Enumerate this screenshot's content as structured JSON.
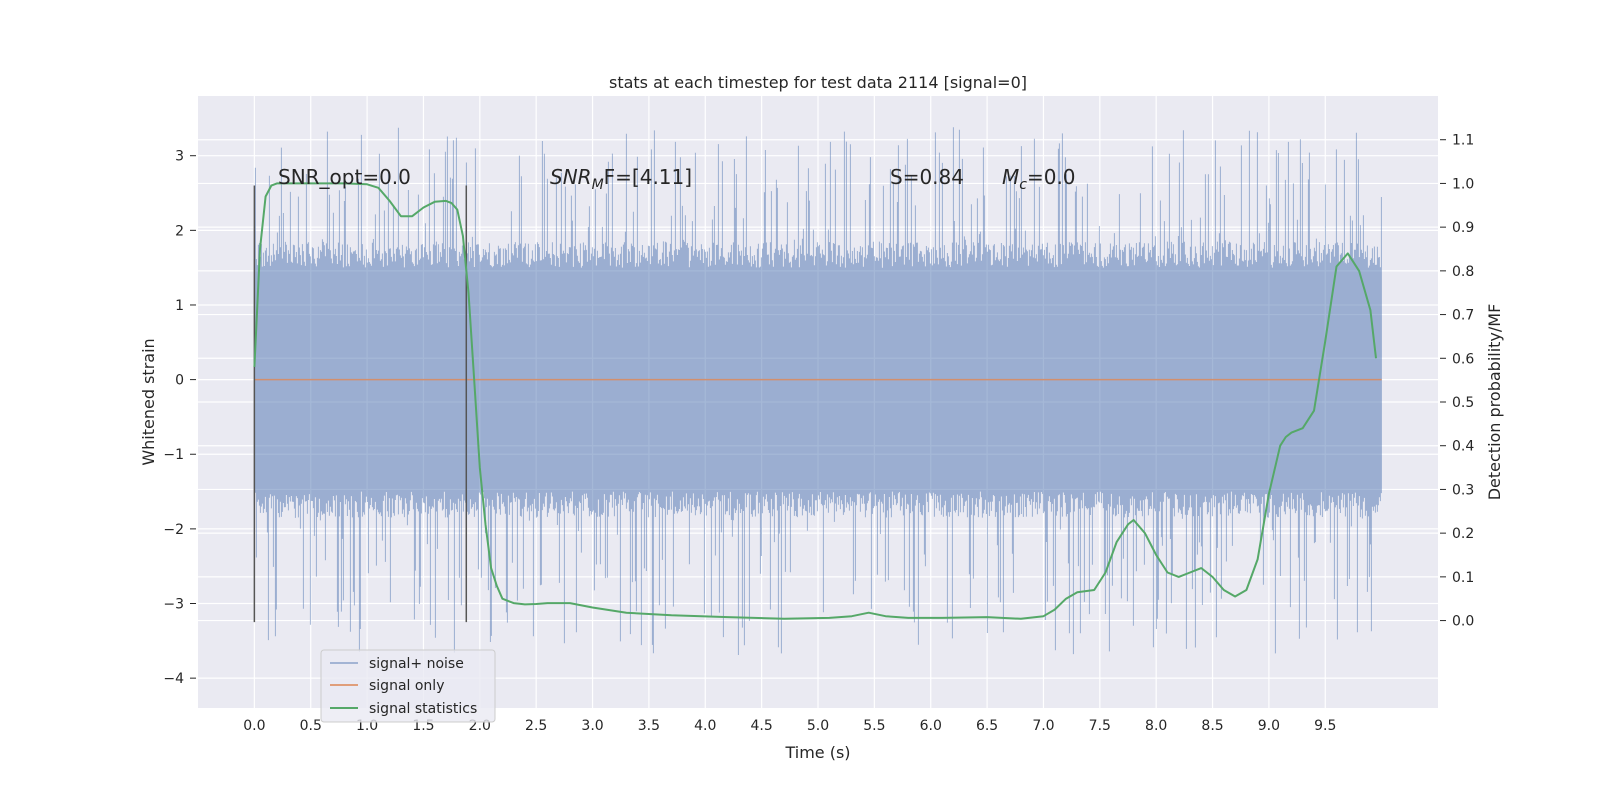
{
  "chart_data": {
    "type": "line",
    "title": "stats at each timestep for test data 2114 [signal=0]",
    "xlabel": "Time (s)",
    "ylabel": "Whitened strain",
    "y2label": "Detection probability/MF",
    "xlim": [
      -0.5,
      10.5
    ],
    "ylim": [
      -4.4,
      3.8
    ],
    "y2lim": [
      -0.2,
      1.2
    ],
    "x_ticks": [
      "0.0",
      "0.5",
      "1.0",
      "1.5",
      "2.0",
      "2.5",
      "3.0",
      "3.5",
      "4.0",
      "4.5",
      "5.0",
      "5.5",
      "6.0",
      "6.5",
      "7.0",
      "7.5",
      "8.0",
      "8.5",
      "9.0",
      "9.5"
    ],
    "y_ticks": [
      "3",
      "2",
      "1",
      "0",
      "−1",
      "−2",
      "−3",
      "−4"
    ],
    "y2_ticks": [
      "1.1",
      "1.0",
      "0.9",
      "0.8",
      "0.7",
      "0.6",
      "0.5",
      "0.4",
      "0.3",
      "0.2",
      "0.1",
      "0.0"
    ],
    "grid": true,
    "legend_position": "lower-left",
    "colors": {
      "noise": "#4c72b0",
      "signal": "#dd8452",
      "stat": "#55a868",
      "marker": "#555555",
      "background": "#eaeaf2"
    },
    "annotations": {
      "snr_opt": "SNR_opt=0.0",
      "snr_mf_main": "SNR",
      "snr_mf_sub": "M",
      "snr_mf_rest": "F=[4.11]",
      "s_stat": "S=0.84",
      "mc_main": "M",
      "mc_sub": "c",
      "mc_rest": "=0.0"
    },
    "vertical_markers": [
      0.0,
      1.88
    ],
    "series": [
      {
        "name": "signal+ noise",
        "kind": "noise_band",
        "x_range": [
          0.0,
          10.0
        ],
        "envelope_typical": [
          -1.5,
          1.5
        ],
        "envelope_peak": [
          -3.7,
          3.4
        ]
      },
      {
        "name": "signal only",
        "x": [
          0.0,
          10.0
        ],
        "values": [
          0.0,
          0.0
        ]
      },
      {
        "name": "signal statistics",
        "axis": "right",
        "x": [
          0.0,
          0.05,
          0.1,
          0.15,
          0.2,
          0.3,
          0.5,
          0.8,
          1.0,
          1.1,
          1.2,
          1.3,
          1.4,
          1.5,
          1.6,
          1.7,
          1.75,
          1.8,
          1.85,
          1.9,
          1.95,
          2.0,
          2.05,
          2.1,
          2.15,
          2.2,
          2.3,
          2.4,
          2.5,
          2.6,
          2.8,
          3.0,
          3.3,
          3.7,
          4.2,
          4.7,
          5.1,
          5.3,
          5.45,
          5.6,
          5.8,
          6.1,
          6.5,
          6.8,
          7.0,
          7.1,
          7.2,
          7.3,
          7.45,
          7.55,
          7.65,
          7.75,
          7.8,
          7.9,
          8.0,
          8.1,
          8.2,
          8.3,
          8.4,
          8.5,
          8.6,
          8.7,
          8.8,
          8.9,
          9.0,
          9.1,
          9.15,
          9.2,
          9.3,
          9.4,
          9.5,
          9.6,
          9.7,
          9.8,
          9.9,
          9.95
        ],
        "values": [
          0.58,
          0.85,
          0.97,
          0.995,
          1.0,
          1.0,
          1.0,
          1.0,
          0.998,
          0.99,
          0.96,
          0.925,
          0.925,
          0.945,
          0.958,
          0.96,
          0.955,
          0.94,
          0.88,
          0.75,
          0.55,
          0.35,
          0.22,
          0.12,
          0.08,
          0.05,
          0.04,
          0.037,
          0.038,
          0.04,
          0.04,
          0.03,
          0.018,
          0.012,
          0.008,
          0.004,
          0.006,
          0.01,
          0.018,
          0.01,
          0.006,
          0.006,
          0.008,
          0.004,
          0.01,
          0.025,
          0.05,
          0.065,
          0.07,
          0.11,
          0.18,
          0.22,
          0.23,
          0.2,
          0.15,
          0.11,
          0.1,
          0.11,
          0.12,
          0.1,
          0.07,
          0.055,
          0.07,
          0.14,
          0.29,
          0.4,
          0.42,
          0.43,
          0.44,
          0.48,
          0.64,
          0.81,
          0.84,
          0.8,
          0.71,
          0.6
        ]
      }
    ]
  }
}
